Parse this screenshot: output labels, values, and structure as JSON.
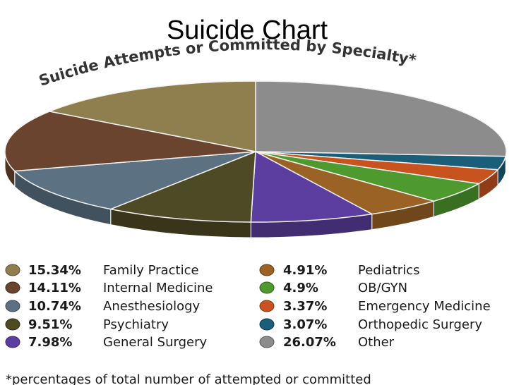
{
  "slide": {
    "title": "Suicide Chart"
  },
  "chart_data": {
    "type": "pie",
    "title": "Suicide Attempts or Committed by Specialty*",
    "footnote": "*percentages of total number of attempted or committed",
    "slices": [
      {
        "label": "Other",
        "pct": "26.07%",
        "value": 26.07,
        "color": "#8c8c8c"
      },
      {
        "label": "Orthopedic Surgery",
        "pct": "3.07%",
        "value": 3.07,
        "color": "#1b5e7a"
      },
      {
        "label": "Emergency Medicine",
        "pct": "3.37%",
        "value": 3.37,
        "color": "#c8531f"
      },
      {
        "label": "OB/GYN",
        "pct": "4.9%",
        "value": 4.9,
        "color": "#4e9a2e"
      },
      {
        "label": "Pediatrics",
        "pct": "4.91%",
        "value": 4.91,
        "color": "#9a6224"
      },
      {
        "label": "General Surgery",
        "pct": "7.98%",
        "value": 7.98,
        "color": "#5b3ea0"
      },
      {
        "label": "Psychiatry",
        "pct": "9.51%",
        "value": 9.51,
        "color": "#4e4a26"
      },
      {
        "label": "Anesthesiology",
        "pct": "10.74%",
        "value": 10.74,
        "color": "#5c7182"
      },
      {
        "label": "Internal Medicine",
        "pct": "14.11%",
        "value": 14.11,
        "color": "#6b4430"
      },
      {
        "label": "Family Practice",
        "pct": "15.34%",
        "value": 15.34,
        "color": "#8f7e4e"
      }
    ],
    "legend_columns": [
      [
        "Family Practice",
        "Internal Medicine",
        "Anesthesiology",
        "Psychiatry",
        "General Surgery"
      ],
      [
        "Pediatrics",
        "OB/GYN",
        "Emergency Medicine",
        "Orthopedic Surgery",
        "Other"
      ]
    ],
    "legend_placement": "bottom"
  }
}
